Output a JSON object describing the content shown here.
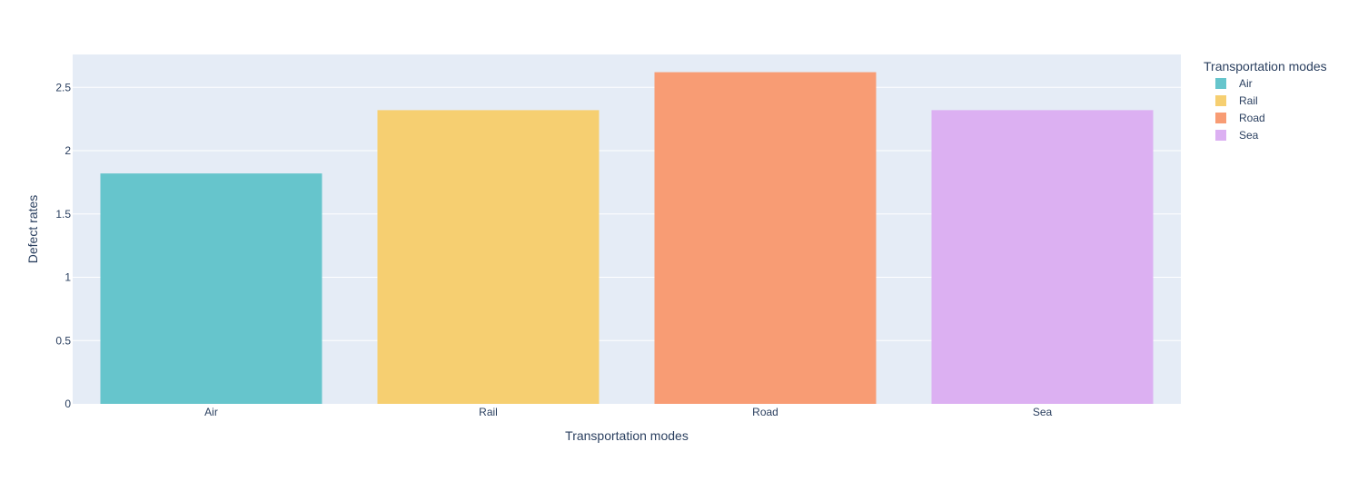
{
  "chart_data": {
    "type": "bar",
    "categories": [
      "Air",
      "Rail",
      "Road",
      "Sea"
    ],
    "values": [
      1.82,
      2.32,
      2.62,
      2.32
    ],
    "colors": [
      "#66c5cc",
      "#f6cf71",
      "#f89c74",
      "#dcb0f2"
    ],
    "xlabel": "Transportation modes",
    "ylabel": "Defect rates",
    "ylim": [
      0,
      2.76
    ],
    "yticks": [
      0,
      0.5,
      1,
      1.5,
      2,
      2.5
    ],
    "ytick_labels": [
      "0",
      "0.5",
      "1",
      "1.5",
      "2",
      "2.5"
    ],
    "grid": true,
    "plot_background": "#e5ecf6",
    "legend": {
      "title": "Transportation modes",
      "placement": "right",
      "entries": [
        "Air",
        "Rail",
        "Road",
        "Sea"
      ]
    }
  }
}
